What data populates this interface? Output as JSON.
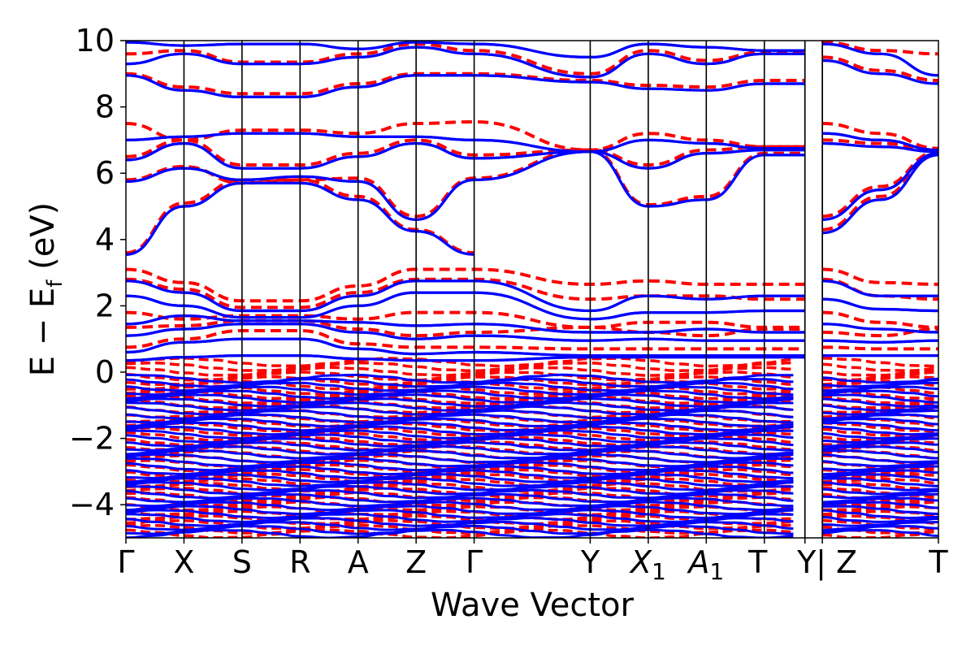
{
  "chart_data": {
    "type": "line",
    "title": "",
    "xlabel": "Wave Vector",
    "ylabel": "E − E_f (eV)",
    "ylabel_main": "E − E",
    "ylabel_sub": "f",
    "ylabel_tail": " (eV)",
    "ylim": [
      -5,
      10
    ],
    "yticks": [
      -4,
      -2,
      0,
      2,
      4,
      6,
      8,
      10
    ],
    "ytick_labels": [
      "−4",
      "−2",
      "0",
      "2",
      "4",
      "6",
      "8",
      "10"
    ],
    "grid": false,
    "legend": "none",
    "kpoints": [
      {
        "label": "Γ",
        "sub": "",
        "x": 0
      },
      {
        "label": "X",
        "sub": "",
        "x": 1
      },
      {
        "label": "S",
        "sub": "",
        "x": 2
      },
      {
        "label": "R",
        "sub": "",
        "x": 3
      },
      {
        "label": "A",
        "sub": "",
        "x": 4
      },
      {
        "label": "Z",
        "sub": "",
        "x": 5
      },
      {
        "label": "Γ",
        "sub": "",
        "x": 6
      },
      {
        "label": "Y",
        "sub": "",
        "x": 8
      },
      {
        "label": "X",
        "sub": "1",
        "x": 9
      },
      {
        "label": "A",
        "sub": "1",
        "x": 10
      },
      {
        "label": "T",
        "sub": "",
        "x": 11
      },
      {
        "label": "Y",
        "sub": "",
        "x": 11.7
      },
      {
        "label": "| Z",
        "sub": "",
        "x": 12
      },
      {
        "label": "T",
        "sub": "",
        "x": 14
      }
    ],
    "xlim": [
      0,
      14
    ],
    "series": [
      {
        "style": "solid",
        "color": "#0000ff",
        "bands": [
          {
            "x": [
              0,
              1,
              2,
              3,
              4,
              5,
              6
            ],
            "y": [
              3.55,
              5.0,
              5.7,
              5.7,
              5.2,
              4.25,
              3.55
            ]
          },
          {
            "x": [
              0,
              1,
              2,
              3,
              4,
              5,
              6,
              8,
              9,
              10,
              11,
              11.7
            ],
            "y": [
              5.75,
              6.15,
              5.8,
              5.9,
              5.75,
              4.6,
              5.8,
              6.65,
              5.0,
              5.2,
              6.55,
              6.55
            ]
          },
          {
            "x": [
              0,
              1,
              2,
              3,
              4,
              5,
              6,
              8,
              9,
              10,
              11,
              11.7
            ],
            "y": [
              6.4,
              6.9,
              6.15,
              6.15,
              6.5,
              6.9,
              6.45,
              6.65,
              6.15,
              6.6,
              6.7,
              6.7
            ]
          },
          {
            "x": [
              0,
              1,
              2,
              3,
              4,
              5,
              6,
              8,
              9,
              10,
              11,
              11.7
            ],
            "y": [
              7.0,
              7.1,
              7.2,
              7.2,
              7.1,
              7.1,
              7.0,
              6.65,
              7.0,
              6.9,
              6.75,
              6.75
            ]
          },
          {
            "x": [
              0,
              1,
              2,
              3,
              4,
              5,
              6,
              8,
              9,
              10,
              11,
              11.7
            ],
            "y": [
              8.95,
              8.5,
              8.3,
              8.3,
              8.6,
              8.95,
              8.95,
              8.75,
              8.55,
              8.5,
              8.7,
              8.7
            ]
          },
          {
            "x": [
              0,
              1,
              2,
              3,
              4,
              5,
              6,
              8,
              9,
              10,
              11,
              11.7
            ],
            "y": [
              9.3,
              9.6,
              9.3,
              9.3,
              9.5,
              9.8,
              9.6,
              8.9,
              9.6,
              9.3,
              9.6,
              9.6
            ]
          },
          {
            "x": [
              0,
              1,
              2,
              3,
              4,
              5,
              6,
              8,
              9,
              10,
              11,
              11.7
            ],
            "y": [
              9.95,
              9.85,
              9.9,
              9.9,
              9.75,
              9.95,
              9.9,
              9.5,
              9.9,
              9.8,
              9.7,
              9.7
            ]
          },
          {
            "x": [
              12,
              13,
              14
            ],
            "y": [
              4.6,
              5.5,
              6.6
            ]
          },
          {
            "x": [
              12,
              13,
              14
            ],
            "y": [
              4.2,
              5.2,
              6.55
            ]
          },
          {
            "x": [
              12,
              13,
              14
            ],
            "y": [
              6.9,
              6.8,
              6.65
            ]
          },
          {
            "x": [
              12,
              13,
              14
            ],
            "y": [
              7.2,
              7.0,
              6.7
            ]
          },
          {
            "x": [
              12,
              13,
              14
            ],
            "y": [
              9.4,
              9.0,
              8.7
            ]
          },
          {
            "x": [
              12,
              13,
              14
            ],
            "y": [
              9.9,
              9.6,
              8.95
            ]
          },
          {
            "x": [
              0,
              1,
              2,
              3,
              4,
              5,
              6,
              8,
              9,
              10,
              11,
              11.7
            ],
            "y": [
              2.75,
              2.4,
              1.85,
              1.85,
              2.3,
              2.75,
              2.75,
              1.85,
              2.3,
              2.2,
              2.3,
              2.3
            ]
          },
          {
            "x": [
              0,
              1,
              2,
              3,
              4,
              5,
              6,
              8,
              9,
              10,
              11,
              11.7
            ],
            "y": [
              2.3,
              2.0,
              1.65,
              1.65,
              2.0,
              2.4,
              2.4,
              1.6,
              1.8,
              1.8,
              1.85,
              1.85
            ]
          },
          {
            "x": [
              0,
              1,
              2,
              3,
              4,
              5,
              6,
              8,
              9,
              10,
              11,
              11.7
            ],
            "y": [
              1.45,
              1.7,
              1.55,
              1.55,
              1.5,
              1.4,
              1.45,
              1.2,
              1.2,
              1.3,
              1.2,
              1.2
            ]
          },
          {
            "x": [
              0,
              1,
              2,
              3,
              4,
              5,
              6,
              8,
              9,
              10,
              11,
              11.7
            ],
            "y": [
              1.1,
              1.3,
              1.45,
              1.45,
              1.2,
              1.0,
              1.1,
              0.95,
              1.0,
              0.95,
              0.95,
              0.95
            ]
          },
          {
            "x": [
              0,
              1,
              2,
              3,
              4,
              5,
              6,
              8,
              9,
              10,
              11,
              11.7
            ],
            "y": [
              0.6,
              0.9,
              1.0,
              1.0,
              0.7,
              0.55,
              0.6,
              0.5,
              0.5,
              0.5,
              0.5,
              0.5
            ]
          },
          {
            "x": [
              0,
              1,
              2,
              3,
              4,
              5,
              6,
              8,
              9,
              10,
              11,
              11.7
            ],
            "y": [
              0.35,
              0.45,
              0.5,
              0.5,
              0.4,
              0.35,
              0.35,
              0.45,
              0.45,
              0.45,
              0.45,
              0.45
            ]
          },
          {
            "x": [
              12,
              13,
              14
            ],
            "y": [
              2.75,
              2.3,
              2.3
            ]
          },
          {
            "x": [
              12,
              13,
              14
            ],
            "y": [
              2.2,
              1.9,
              1.85
            ]
          },
          {
            "x": [
              12,
              13,
              14
            ],
            "y": [
              1.45,
              1.3,
              1.2
            ]
          },
          {
            "x": [
              12,
              13,
              14
            ],
            "y": [
              0.95,
              0.9,
              0.95
            ]
          },
          {
            "x": [
              12,
              13,
              14
            ],
            "y": [
              0.5,
              0.5,
              0.5
            ]
          }
        ]
      },
      {
        "style": "dashed",
        "color": "#ff0000",
        "bands": [
          {
            "x": [
              0,
              1,
              2,
              3,
              4,
              5,
              6
            ],
            "y": [
              3.6,
              5.1,
              5.8,
              5.8,
              5.3,
              4.3,
              3.6
            ]
          },
          {
            "x": [
              0,
              1,
              2,
              3,
              4,
              5,
              6,
              8,
              9,
              10,
              11,
              11.7
            ],
            "y": [
              5.8,
              6.2,
              5.7,
              5.8,
              5.85,
              4.7,
              5.85,
              6.7,
              5.05,
              5.3,
              6.6,
              6.6
            ]
          },
          {
            "x": [
              0,
              1,
              2,
              3,
              4,
              5,
              6,
              8,
              9,
              10,
              11,
              11.7
            ],
            "y": [
              6.5,
              7.0,
              6.25,
              6.25,
              6.6,
              7.0,
              6.55,
              6.7,
              6.25,
              6.7,
              6.8,
              6.8
            ]
          },
          {
            "x": [
              0,
              1,
              2,
              3,
              4,
              5,
              6,
              8,
              9,
              10,
              11,
              11.7
            ],
            "y": [
              7.5,
              7.0,
              7.3,
              7.3,
              7.2,
              7.5,
              7.55,
              6.7,
              7.2,
              7.0,
              6.8,
              6.8
            ]
          },
          {
            "x": [
              0,
              1,
              2,
              3,
              4,
              5,
              6,
              8,
              9,
              10,
              11,
              11.7
            ],
            "y": [
              9.0,
              8.6,
              8.4,
              8.4,
              8.7,
              9.0,
              9.0,
              8.8,
              8.65,
              8.6,
              8.8,
              8.8
            ]
          },
          {
            "x": [
              0,
              1,
              2,
              3,
              4,
              5,
              6,
              8,
              9,
              10,
              11,
              11.7
            ],
            "y": [
              9.6,
              9.7,
              9.35,
              9.35,
              9.6,
              9.9,
              9.7,
              9.0,
              9.7,
              9.4,
              9.65,
              9.65
            ]
          },
          {
            "x": [
              12,
              13,
              14
            ],
            "y": [
              4.7,
              5.6,
              6.65
            ]
          },
          {
            "x": [
              12,
              13,
              14
            ],
            "y": [
              4.3,
              5.3,
              6.6
            ]
          },
          {
            "x": [
              12,
              13,
              14
            ],
            "y": [
              7.0,
              6.9,
              6.7
            ]
          },
          {
            "x": [
              12,
              13,
              14
            ],
            "y": [
              7.5,
              7.2,
              6.75
            ]
          },
          {
            "x": [
              12,
              13,
              14
            ],
            "y": [
              9.5,
              9.1,
              8.8
            ]
          },
          {
            "x": [
              12,
              13,
              14
            ],
            "y": [
              9.95,
              9.7,
              9.6
            ]
          },
          {
            "x": [
              0,
              1,
              2,
              3,
              4,
              5,
              6,
              8,
              9,
              10,
              11,
              11.7
            ],
            "y": [
              3.1,
              2.7,
              2.15,
              2.15,
              2.6,
              3.1,
              3.1,
              2.65,
              2.75,
              2.65,
              2.65,
              2.65
            ]
          },
          {
            "x": [
              0,
              1,
              2,
              3,
              4,
              5,
              6,
              8,
              9,
              10,
              11,
              11.7
            ],
            "y": [
              2.8,
              2.5,
              1.95,
              1.95,
              2.4,
              2.8,
              2.8,
              2.2,
              2.3,
              2.3,
              2.2,
              2.2
            ]
          },
          {
            "x": [
              0,
              1,
              2,
              3,
              4,
              5,
              6,
              8,
              9,
              10,
              11,
              11.7
            ],
            "y": [
              1.8,
              1.6,
              1.7,
              1.7,
              1.6,
              1.8,
              1.8,
              1.35,
              1.5,
              1.5,
              1.35,
              1.35
            ]
          },
          {
            "x": [
              0,
              1,
              2,
              3,
              4,
              5,
              6,
              8,
              9,
              10,
              11,
              11.7
            ],
            "y": [
              1.35,
              1.4,
              1.55,
              1.55,
              1.3,
              1.1,
              1.2,
              1.35,
              1.2,
              1.1,
              1.3,
              1.3
            ]
          },
          {
            "x": [
              0,
              1,
              2,
              3,
              4,
              5,
              6,
              8,
              9,
              10,
              11,
              11.7
            ],
            "y": [
              0.75,
              1.0,
              1.25,
              1.25,
              0.85,
              0.75,
              0.75,
              0.7,
              0.7,
              0.7,
              0.7,
              0.7
            ]
          },
          {
            "x": [
              12,
              13,
              14
            ],
            "y": [
              3.1,
              2.7,
              2.65
            ]
          },
          {
            "x": [
              12,
              13,
              14
            ],
            "y": [
              2.8,
              2.3,
              2.2
            ]
          },
          {
            "x": [
              12,
              13,
              14
            ],
            "y": [
              1.8,
              1.5,
              1.35
            ]
          },
          {
            "x": [
              12,
              13,
              14
            ],
            "y": [
              1.2,
              1.1,
              1.3
            ]
          },
          {
            "x": [
              12,
              13,
              14
            ],
            "y": [
              0.75,
              0.7,
              0.7
            ]
          }
        ]
      }
    ],
    "valence_manifold": {
      "solid": {
        "top": -0.2,
        "bottom": -5.0,
        "spacing": 0.12
      },
      "dashed": {
        "top": 0.3,
        "bottom": -5.0,
        "spacing": 0.14
      }
    }
  }
}
